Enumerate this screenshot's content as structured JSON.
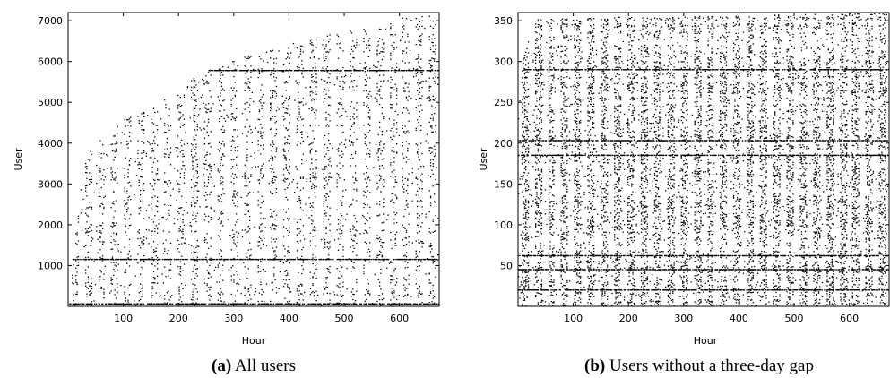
{
  "chart_data": [
    {
      "type": "scatter",
      "caption_letter": "(a)",
      "caption_text": "All users",
      "xlabel": "Hour",
      "ylabel": "User",
      "xlim": [
        0,
        672
      ],
      "ylim": [
        0,
        7200
      ],
      "xticks": [
        100,
        200,
        300,
        400,
        500,
        600
      ],
      "yticks": [
        1000,
        2000,
        3000,
        4000,
        5000,
        6000,
        7000
      ],
      "grid": false,
      "pattern": {
        "description_values": "dense activity dots per user per hour; daily periodicity; users join over time along an upward frontier",
        "frontier": [
          [
            0,
            0
          ],
          [
            10,
            1500
          ],
          [
            30,
            3600
          ],
          [
            60,
            4200
          ],
          [
            100,
            4550
          ],
          [
            150,
            4900
          ],
          [
            200,
            5350
          ],
          [
            250,
            5750
          ],
          [
            300,
            6050
          ],
          [
            350,
            6250
          ],
          [
            400,
            6450
          ],
          [
            450,
            6600
          ],
          [
            500,
            6750
          ],
          [
            550,
            6900
          ],
          [
            600,
            7050
          ],
          [
            672,
            7180
          ]
        ],
        "dense_rows": [
          1150,
          60,
          5780
        ]
      }
    },
    {
      "type": "scatter",
      "caption_letter": "(b)",
      "caption_text": "Users without a three-day gap",
      "xlabel": "Hour",
      "ylabel": "User",
      "xlim": [
        0,
        672
      ],
      "ylim": [
        0,
        360
      ],
      "xticks": [
        100,
        200,
        300,
        400,
        500,
        600
      ],
      "yticks": [
        50,
        100,
        150,
        200,
        250,
        300,
        350
      ],
      "grid": false,
      "pattern": {
        "description_values": "dense activity dots per user per hour; strong daily periodicity; nearly all users active from the start",
        "frontier": [
          [
            0,
            240
          ],
          [
            8,
            300
          ],
          [
            20,
            330
          ],
          [
            35,
            352
          ],
          [
            672,
            360
          ]
        ],
        "dense_rows": [
          290,
          203,
          185,
          62,
          45,
          20
        ]
      }
    }
  ]
}
